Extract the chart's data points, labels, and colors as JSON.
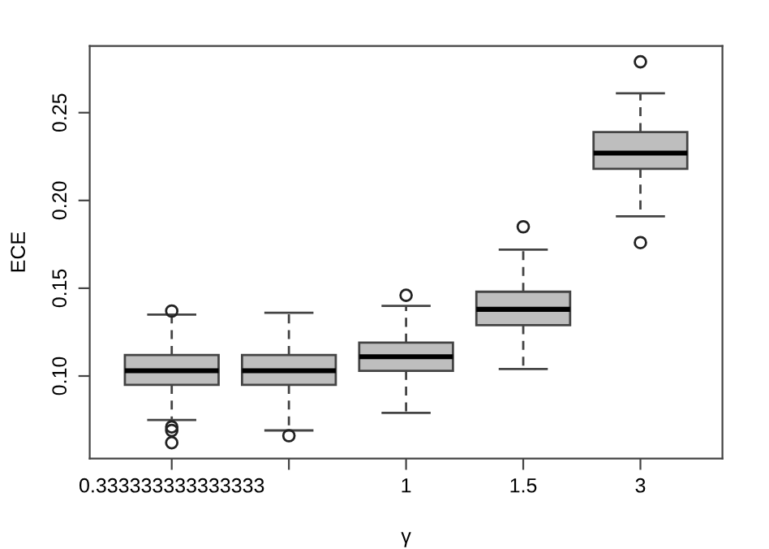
{
  "chart_data": {
    "type": "box",
    "xlabel": "γ",
    "ylabel": "ECE",
    "categories": [
      "0.333333333333333",
      null,
      "1",
      "1.5",
      "3"
    ],
    "color": "#bebebe",
    "boxes": [
      {
        "low": 0.075,
        "q1": 0.095,
        "median": 0.103,
        "q3": 0.112,
        "high": 0.135,
        "outliers": [
          0.137,
          0.071,
          0.069,
          0.062
        ]
      },
      {
        "low": 0.069,
        "q1": 0.095,
        "median": 0.103,
        "q3": 0.112,
        "high": 0.136,
        "outliers": [
          0.066
        ]
      },
      {
        "low": 0.079,
        "q1": 0.103,
        "median": 0.111,
        "q3": 0.119,
        "high": 0.14,
        "outliers": [
          0.146
        ]
      },
      {
        "low": 0.104,
        "q1": 0.129,
        "median": 0.138,
        "q3": 0.148,
        "high": 0.172,
        "outliers": [
          0.185
        ]
      },
      {
        "low": 0.191,
        "q1": 0.218,
        "median": 0.227,
        "q3": 0.239,
        "high": 0.261,
        "outliers": [
          0.279,
          0.176
        ]
      }
    ],
    "ylim": [
      0.053,
      0.288
    ],
    "yticks": [
      {
        "value": 0.1,
        "label": "0.10"
      },
      0.15,
      {
        "value": 0.2,
        "label": "0.20"
      },
      0.25
    ],
    "grid": false
  }
}
